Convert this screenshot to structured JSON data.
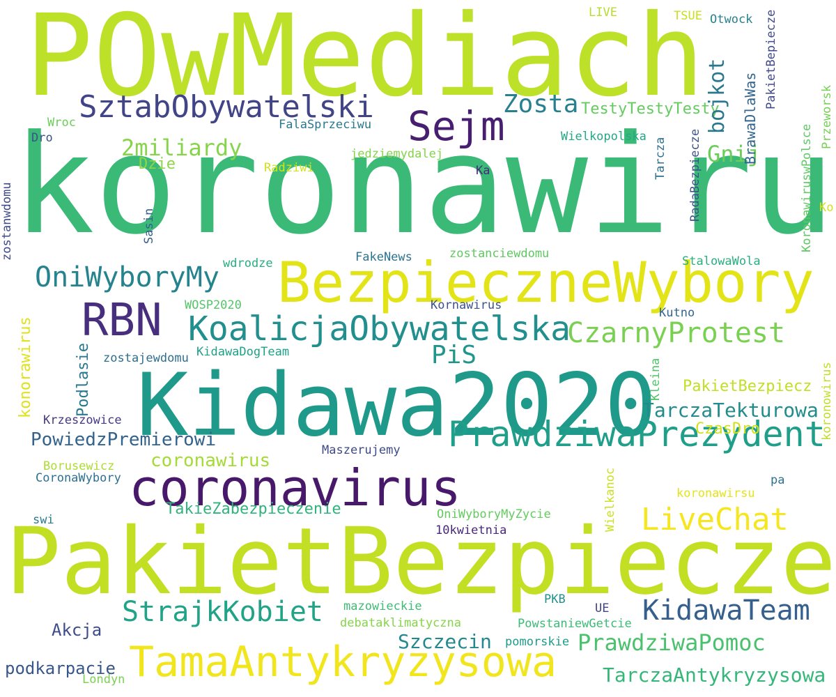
{
  "words": [
    {
      "text": "POwMediach",
      "color": "#bde029"
    },
    {
      "text": "koronawirus",
      "color": "#3bba77"
    },
    {
      "text": "Kidawa2020",
      "color": "#1f9a8a"
    },
    {
      "text": "PakietBezpiecze",
      "color": "#c2df23"
    },
    {
      "text": "BezpieczneWybory",
      "color": "#e3e418"
    },
    {
      "text": "coronavirus",
      "color": "#48186a"
    },
    {
      "text": "SztabObywatelski",
      "color": "#414487"
    },
    {
      "text": "Sejm",
      "color": "#481e70"
    },
    {
      "text": "Zosta",
      "color": "#27808e"
    },
    {
      "text": "RBN",
      "color": "#472f7d"
    },
    {
      "text": "OniWyboryMy",
      "color": "#25838e"
    },
    {
      "text": "KoalicjaObywatelska",
      "color": "#218f8d"
    },
    {
      "text": "PrawdziwaPrezydent",
      "color": "#1f9e89"
    },
    {
      "text": "TamaAntykryzysowa",
      "color": "#f1e51d"
    },
    {
      "text": "LiveChat",
      "color": "#f6e620"
    },
    {
      "text": "CzarnyProtest",
      "color": "#7ad151"
    },
    {
      "text": "KidawaTeam",
      "color": "#355f8d"
    },
    {
      "text": "StrajkKobiet",
      "color": "#20a386"
    },
    {
      "text": "PrawdziwaPomoc",
      "color": "#4ac16d"
    },
    {
      "text": "TarczaAntykryzysowa",
      "color": "#35b779"
    },
    {
      "text": "2miliardy",
      "color": "#86d549"
    },
    {
      "text": "bojkot",
      "color": "#2a788e"
    },
    {
      "text": "Gnij",
      "color": "#6ccd5a"
    },
    {
      "text": "PiS",
      "color": "#1f958b"
    },
    {
      "text": "TarczaTekturowa",
      "color": "#228c8d"
    },
    {
      "text": "PowiedzPremierowi",
      "color": "#33638d"
    },
    {
      "text": "Szczecin",
      "color": "#23898e"
    },
    {
      "text": "coronawirus",
      "color": "#a5db36"
    },
    {
      "text": "TestyTestyTesty",
      "color": "#65cb5e"
    },
    {
      "text": "PakietBezpiecz",
      "color": "#c0df25"
    },
    {
      "text": "Dzie",
      "color": "#8ed645"
    },
    {
      "text": "podkarpacie",
      "color": "#39568c"
    },
    {
      "text": "TakieZabezpieczenie",
      "color": "#2fb47c"
    },
    {
      "text": "Akcja",
      "color": "#3e4c8a"
    },
    {
      "text": "CzasDro",
      "color": "#d0e11c"
    },
    {
      "text": "Krzeszowice",
      "color": "#453781"
    },
    {
      "text": "Maszerujemy",
      "color": "#3e4a89"
    },
    {
      "text": "FakeNews",
      "color": "#2c728e"
    },
    {
      "text": "Kornawirus",
      "color": "#3b528b"
    },
    {
      "text": "Kutno",
      "color": "#31668e"
    },
    {
      "text": "StalowaWola",
      "color": "#29af7f"
    },
    {
      "text": "KidawaDogTeam",
      "color": "#1fa088"
    },
    {
      "text": "zostajewdomu",
      "color": "#2e6e8e"
    },
    {
      "text": "WOSP2020",
      "color": "#54c568"
    },
    {
      "text": "wdrodze",
      "color": "#28ae80"
    },
    {
      "text": "zostanciewdomu",
      "color": "#5ec962"
    },
    {
      "text": "Borusewicz",
      "color": "#addc30"
    },
    {
      "text": "CoronaWybory",
      "color": "#2d718e"
    },
    {
      "text": "swi",
      "color": "#2a7b8e"
    },
    {
      "text": "OniWyboryMyZycie",
      "color": "#63cb5f"
    },
    {
      "text": "10kwietnia",
      "color": "#482777"
    },
    {
      "text": "pa",
      "color": "#2c728e"
    },
    {
      "text": "koronawirsu",
      "color": "#e5e419"
    },
    {
      "text": "mazowieckie",
      "color": "#3fbc73"
    },
    {
      "text": "debataklimatyczna",
      "color": "#86d549"
    },
    {
      "text": "PKB",
      "color": "#21918c"
    },
    {
      "text": "UE",
      "color": "#404588"
    },
    {
      "text": "PowstaniewGetcie",
      "color": "#3bbb75"
    },
    {
      "text": "pomorskie",
      "color": "#1e9c89"
    },
    {
      "text": "Londyn",
      "color": "#7ad151"
    },
    {
      "text": "FalaSprzeciwu",
      "color": "#2a788e"
    },
    {
      "text": "Wroc",
      "color": "#6ccd5a"
    },
    {
      "text": "Dro",
      "color": "#3a538b"
    },
    {
      "text": "jedziemydalej",
      "color": "#84d44b"
    },
    {
      "text": "Radziwi",
      "color": "#d2e21b"
    },
    {
      "text": "Ka",
      "color": "#472c7a"
    },
    {
      "text": "Wielkopolska",
      "color": "#22a884"
    },
    {
      "text": "LIVE",
      "color": "#b5de2b"
    },
    {
      "text": "TSUE",
      "color": "#c8e020"
    },
    {
      "text": "Otwock",
      "color": "#26828e"
    },
    {
      "text": "BrawaDlaWas",
      "color": "#31658e"
    },
    {
      "text": "PakietBepiecze",
      "color": "#3f4889"
    },
    {
      "text": "RadaBezpiecze",
      "color": "#3b528b"
    },
    {
      "text": "Tarcza",
      "color": "#2c728e"
    },
    {
      "text": "KoronawiruswPolsce",
      "color": "#5ec962"
    },
    {
      "text": "Przeworsk",
      "color": "#75d054"
    },
    {
      "text": "Ko",
      "color": "#d8e219"
    },
    {
      "text": "Sasin",
      "color": "#355f8d"
    },
    {
      "text": "zostanwdomu",
      "color": "#3e4989"
    },
    {
      "text": "konorawirus",
      "color": "#dde318"
    },
    {
      "text": "Podlasie",
      "color": "#2a788e"
    },
    {
      "text": "Kleina",
      "color": "#50c46a"
    },
    {
      "text": "Wielkanoc",
      "color": "#cae11f"
    },
    {
      "text": "koronowirus",
      "color": "#bddf26"
    }
  ]
}
